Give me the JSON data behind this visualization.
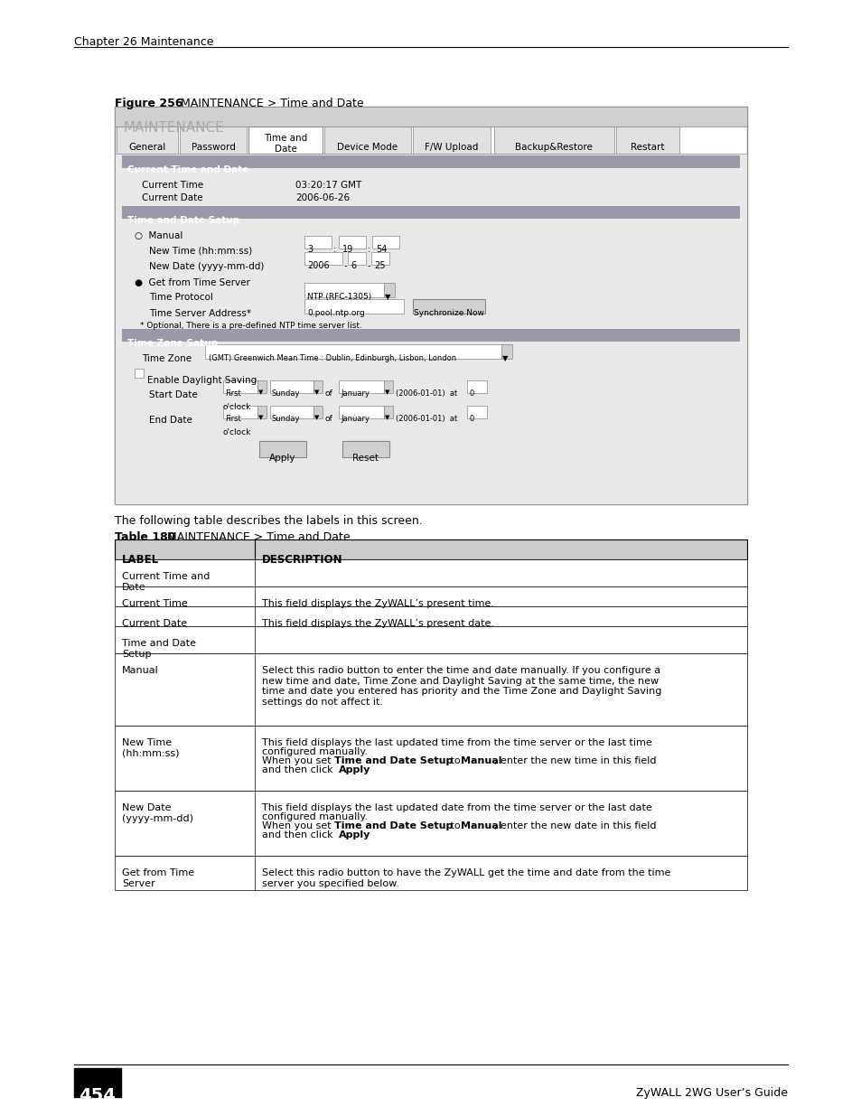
{
  "page_bg": "#ffffff",
  "header_text": "Chapter 26 Maintenance",
  "footer_page_num": "454",
  "footer_right": "ZyWALL 2WG User’s Guide",
  "figure_label": "Figure 256",
  "figure_title": "MAINTENANCE > Time and Date",
  "table_label": "Table 180",
  "table_title": "MAINTENANCE > Time and Date",
  "between_text": "The following table describes the labels in this screen.",
  "table_col1_header": "LABEL",
  "table_col2_header": "DESCRIPTION",
  "table_rows": [
    [
      "Current Time and\nDate",
      ""
    ],
    [
      "Current Time",
      "This field displays the ZyWALL’s present time."
    ],
    [
      "Current Date",
      "This field displays the ZyWALL’s present date."
    ],
    [
      "Time and Date\nSetup",
      ""
    ],
    [
      "Manual",
      "Select this radio button to enter the time and date manually. If you configure a\nnew time and date, Time Zone and Daylight Saving at the same time, the new\ntime and date you entered has priority and the Time Zone and Daylight Saving\nsettings do not affect it."
    ],
    [
      "New Time\n(hh:mm:ss)",
      "This field displays the last updated time from the time server or the last time\nconfigured manually.\nWhen you set Time and Date Setup to Manual, enter the new time in this field\nand then click Apply."
    ],
    [
      "New Date\n(yyyy-mm-dd)",
      "This field displays the last updated date from the time server or the last date\nconfigured manually.\nWhen you set Time and Date Setup to Manual, enter the new date in this field\nand then click Apply."
    ],
    [
      "Get from Time\nServer",
      "Select this radio button to have the ZyWALL get the time and date from the time\nserver you specified below."
    ]
  ],
  "table_bold_in_rows": {
    "4": [
      "Time and Date Setup",
      "Manual"
    ],
    "5": [
      "Time and Date Setup",
      "Manual",
      "Apply"
    ],
    "6": [
      "Time and Date Setup",
      "Manual",
      "Apply"
    ],
    "7": []
  }
}
